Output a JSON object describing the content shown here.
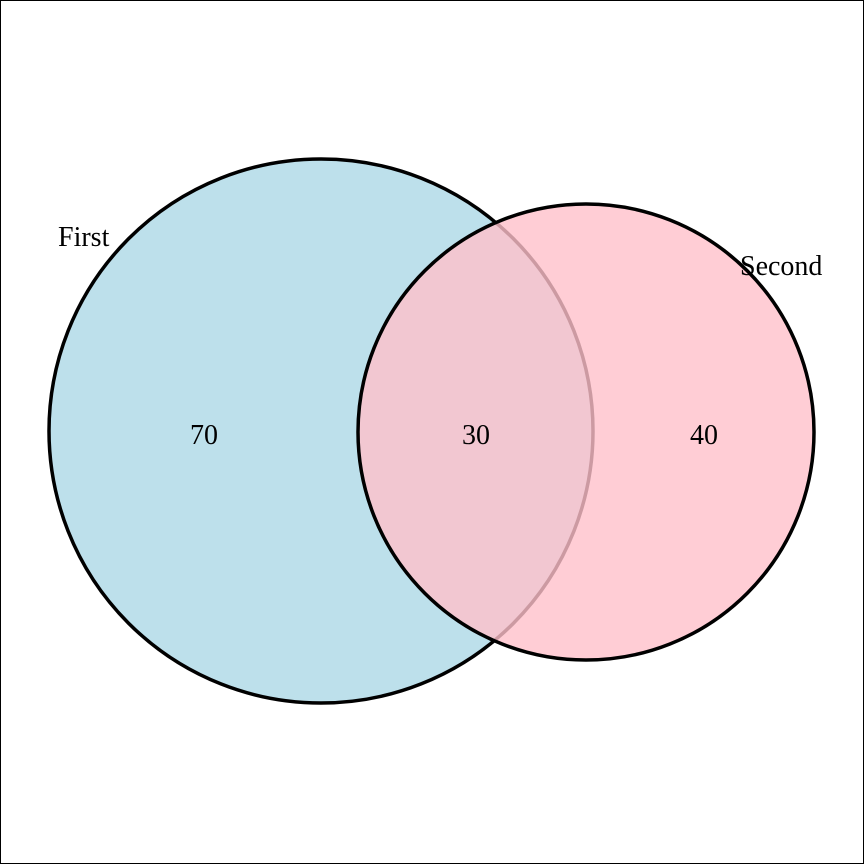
{
  "venn": {
    "sets": [
      {
        "name": "First",
        "color": "#add8e6"
      },
      {
        "name": "Second",
        "color": "#ffc0cb"
      }
    ],
    "regions": {
      "first_only": "70",
      "intersection": "30",
      "second_only": "40"
    },
    "fill_opacity": 0.8,
    "outline_color": "#000000"
  }
}
